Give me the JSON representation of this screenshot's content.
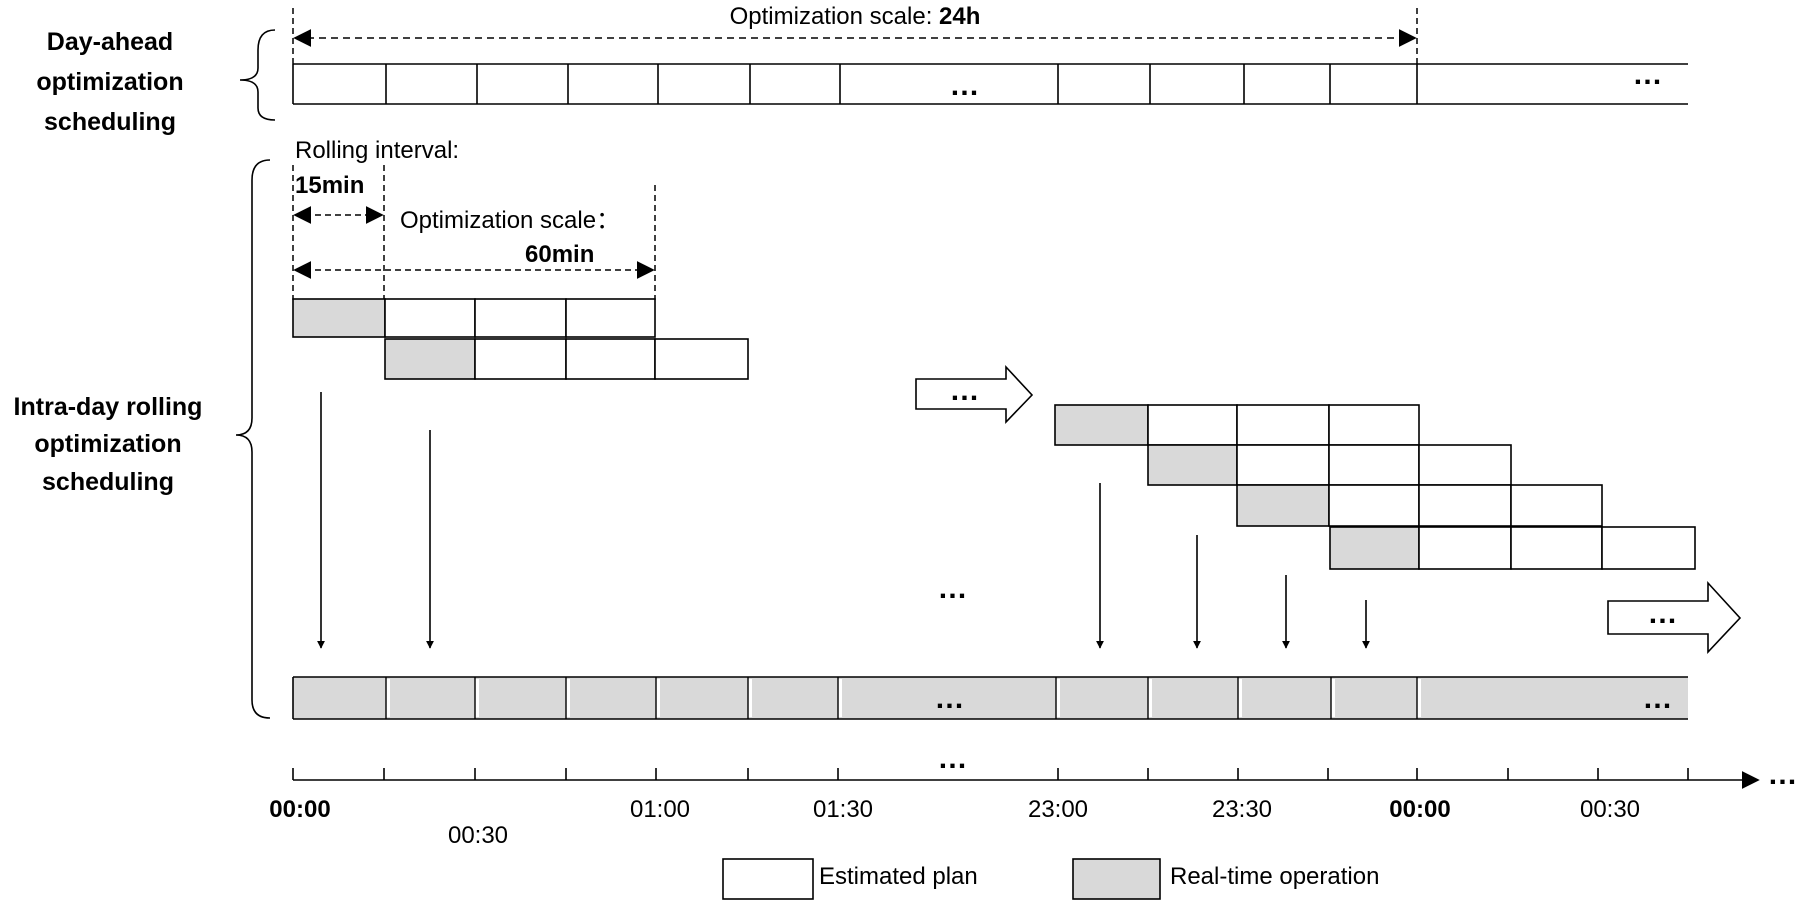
{
  "rows": {
    "day_ahead": [
      "Day-ahead",
      "optimization",
      "scheduling"
    ],
    "intra_day": [
      "Intra-day rolling",
      "optimization",
      "scheduling"
    ]
  },
  "day_ahead_scale": {
    "prefix": "Optimization scale: ",
    "value": "24h"
  },
  "rolling_interval": {
    "label": "Rolling interval:",
    "value": "15min"
  },
  "intra_scale": {
    "label": "Optimization scale：",
    "value": "60min"
  },
  "ellipsis": "…",
  "time_axis": {
    "ticks": [
      "00:00",
      "00:30",
      "01:00",
      "01:30",
      "23:00",
      "23:30",
      "00:00",
      "00:30"
    ],
    "emphasized": [
      true,
      false,
      false,
      false,
      false,
      false,
      true,
      false
    ]
  },
  "legend": {
    "estimated": "Estimated plan",
    "real_time": "Real-time operation"
  },
  "colors": {
    "real_time_fill": "#d9d9d9",
    "line": "#000000",
    "background": "#ffffff"
  }
}
